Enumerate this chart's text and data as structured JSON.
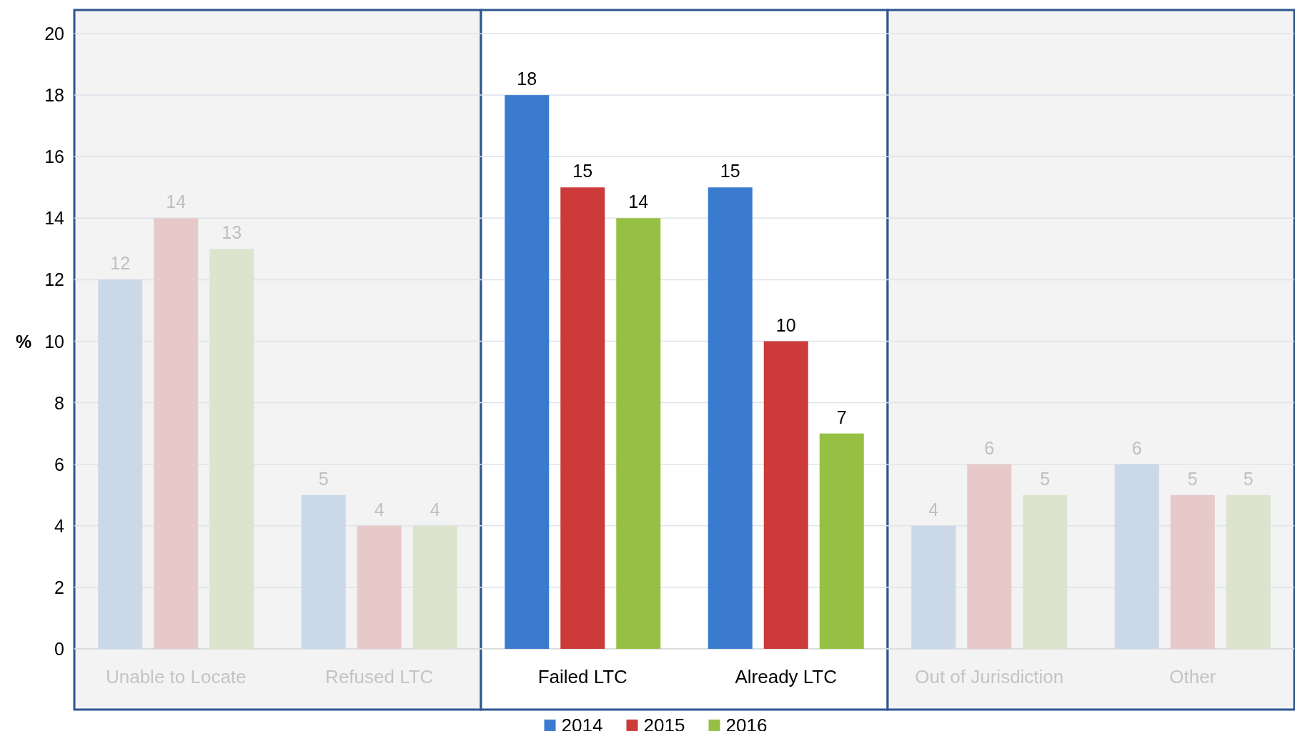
{
  "chart_data": {
    "type": "bar",
    "ylabel": "%",
    "categories": [
      "Unable to Locate",
      "Refused LTC",
      "Failed LTC",
      "Already LTC",
      "Out of Jurisdiction",
      "Other"
    ],
    "series": [
      {
        "name": "2014",
        "color": "#3a7bd0",
        "values": [
          12,
          5,
          18,
          15,
          4,
          6
        ],
        "colors": [
          "#cbd8e7",
          "#cbd8e7",
          "#3a7bd0",
          "#3a7bd0",
          "#cbd8e7",
          "#cbd8e7"
        ]
      },
      {
        "name": "2015",
        "color": "#cc3a3a",
        "values": [
          14,
          4,
          15,
          10,
          6,
          5
        ],
        "colors": [
          "#e7c9ca",
          "#e7c9ca",
          "#cc3a3a",
          "#cc3a3a",
          "#e7c9ca",
          "#e7c9ca"
        ]
      },
      {
        "name": "2016",
        "color": "#96c043",
        "values": [
          13,
          4,
          14,
          7,
          5,
          5
        ],
        "colors": [
          "#dde4cd",
          "#dde4cd",
          "#96c043",
          "#96c043",
          "#dde4cd",
          "#dde4cd"
        ]
      }
    ],
    "ylim": [
      0,
      20
    ],
    "yticks": [
      0,
      2,
      4,
      6,
      8,
      10,
      12,
      14,
      16,
      18,
      20
    ],
    "grid": "y",
    "data_labels": true,
    "legend": "bottom"
  }
}
